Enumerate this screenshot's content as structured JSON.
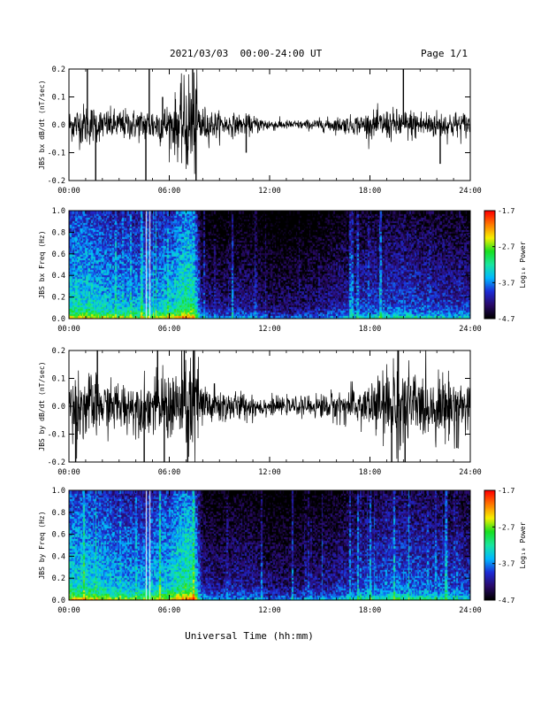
{
  "header": {
    "title": "2021/03/03  00:00-24:00 UT",
    "page": "Page 1/1"
  },
  "footer": {
    "xlabel": "Universal Time (hh:mm)"
  },
  "colormap": {
    "stops": [
      "#000000",
      "#2a0a6a",
      "#1d2bd6",
      "#00b8ff",
      "#19e6a0",
      "#18e020",
      "#f6f000",
      "#ff7a00",
      "#ff0000"
    ]
  },
  "chart_data": [
    {
      "type": "line",
      "name": "bx-waveform",
      "ylabel": "JBS bx dB/dt (nT/sec)",
      "xlim": [
        0,
        24
      ],
      "ylim": [
        -0.2,
        0.2
      ],
      "xticks": [
        "00:00",
        "06:00",
        "12:00",
        "18:00",
        "24:00"
      ],
      "yticks": [
        "-0.2",
        "-0.1",
        "0.0",
        "0.1",
        "0.2"
      ],
      "envelope": {
        "x": [
          0,
          1,
          2,
          3,
          4,
          5,
          6,
          6.7,
          7.3,
          7.6,
          8,
          9,
          10,
          11,
          12,
          13,
          14,
          15,
          16,
          17,
          18,
          19,
          20,
          21,
          22,
          23,
          24
        ],
        "amplitude": [
          0.05,
          0.07,
          0.05,
          0.05,
          0.05,
          0.06,
          0.07,
          0.12,
          0.2,
          0.14,
          0.06,
          0.04,
          0.035,
          0.03,
          0.02,
          0.015,
          0.015,
          0.02,
          0.025,
          0.03,
          0.04,
          0.05,
          0.05,
          0.05,
          0.045,
          0.045,
          0.04
        ]
      },
      "spikes": [
        [
          1.1,
          0.2
        ],
        [
          1.6,
          -0.2
        ],
        [
          4.6,
          -0.2
        ],
        [
          4.8,
          0.2
        ],
        [
          5.6,
          0.1
        ],
        [
          7.4,
          0.2
        ],
        [
          7.6,
          -0.2
        ],
        [
          10.6,
          -0.1
        ],
        [
          20.0,
          0.2
        ],
        [
          22.2,
          -0.14
        ]
      ]
    },
    {
      "type": "heatmap",
      "name": "bx-spectrogram",
      "ylabel": "JBS bx Freq (Hz)",
      "colorbar_label": "Log₁₀ Power",
      "xlim": [
        0,
        24
      ],
      "ylim": [
        0,
        1
      ],
      "clim": [
        -4.7,
        -1.7
      ],
      "xticks": [
        "00:00",
        "06:00",
        "12:00",
        "18:00",
        "24:00"
      ],
      "yticks": [
        "0.0",
        "0.2",
        "0.4",
        "0.6",
        "0.8",
        "1.0"
      ],
      "cticks": [
        "-1.7",
        "-2.7",
        "-3.7",
        "-4.7"
      ],
      "activity": {
        "x": [
          0,
          1,
          2,
          3,
          4,
          5,
          6,
          7,
          7.5,
          8,
          9,
          10,
          11,
          12,
          13,
          14,
          15,
          16,
          17,
          18,
          19,
          20,
          21,
          22,
          23,
          24
        ],
        "level": [
          0.72,
          0.75,
          0.68,
          0.62,
          0.6,
          0.62,
          0.66,
          0.9,
          0.85,
          0.2,
          0.15,
          0.2,
          0.2,
          0.1,
          0.1,
          0.12,
          0.16,
          0.22,
          0.28,
          0.35,
          0.36,
          0.38,
          0.34,
          0.32,
          0.3,
          0.3
        ]
      },
      "white_lines": [
        4.6,
        4.8
      ]
    },
    {
      "type": "line",
      "name": "by-waveform",
      "ylabel": "JBS by dB/dt (nT/sec)",
      "xlim": [
        0,
        24
      ],
      "ylim": [
        -0.2,
        0.2
      ],
      "xticks": [
        "00:00",
        "06:00",
        "12:00",
        "18:00",
        "24:00"
      ],
      "yticks": [
        "-0.2",
        "-0.1",
        "0.0",
        "0.1",
        "0.2"
      ],
      "envelope": {
        "x": [
          0,
          1,
          2,
          3,
          4,
          5,
          6,
          6.7,
          7.3,
          7.6,
          8,
          9,
          10,
          11,
          12,
          13,
          14,
          15,
          16,
          17,
          18,
          19,
          19.5,
          20,
          21,
          22,
          23,
          24
        ],
        "amplitude": [
          0.1,
          0.12,
          0.08,
          0.08,
          0.08,
          0.09,
          0.12,
          0.14,
          0.2,
          0.2,
          0.08,
          0.06,
          0.05,
          0.04,
          0.03,
          0.025,
          0.03,
          0.04,
          0.05,
          0.06,
          0.08,
          0.12,
          0.2,
          0.14,
          0.1,
          0.1,
          0.1,
          0.1
        ]
      },
      "spikes": [
        [
          0.4,
          -0.2
        ],
        [
          1.7,
          0.2
        ],
        [
          4.5,
          -0.2
        ],
        [
          5.3,
          0.2
        ],
        [
          5.7,
          -0.2
        ],
        [
          6.9,
          0.2
        ],
        [
          7.1,
          -0.2
        ],
        [
          7.5,
          0.2
        ],
        [
          19.3,
          -0.2
        ],
        [
          19.7,
          0.2
        ],
        [
          20.1,
          -0.2
        ],
        [
          23.2,
          -0.15
        ]
      ]
    },
    {
      "type": "heatmap",
      "name": "by-spectrogram",
      "ylabel": "JBS by Freq (Hz)",
      "colorbar_label": "Log₁₀ Power",
      "xlim": [
        0,
        24
      ],
      "ylim": [
        0,
        1
      ],
      "clim": [
        -4.7,
        -1.7
      ],
      "xticks": [
        "00:00",
        "06:00",
        "12:00",
        "18:00",
        "24:00"
      ],
      "yticks": [
        "0.0",
        "0.2",
        "0.4",
        "0.6",
        "0.8",
        "1.0"
      ],
      "cticks": [
        "-1.7",
        "-2.7",
        "-3.7",
        "-4.7"
      ],
      "activity": {
        "x": [
          0,
          1,
          2,
          3,
          4,
          5,
          6,
          7,
          7.5,
          8,
          9,
          10,
          11,
          12,
          13,
          14,
          15,
          16,
          17,
          18,
          19,
          20,
          21,
          22,
          23,
          24
        ],
        "level": [
          0.74,
          0.76,
          0.7,
          0.62,
          0.6,
          0.64,
          0.7,
          0.92,
          0.88,
          0.25,
          0.2,
          0.24,
          0.24,
          0.14,
          0.14,
          0.16,
          0.2,
          0.26,
          0.32,
          0.4,
          0.44,
          0.46,
          0.44,
          0.4,
          0.36,
          0.34
        ]
      },
      "white_lines": [
        4.6,
        4.8
      ]
    }
  ]
}
